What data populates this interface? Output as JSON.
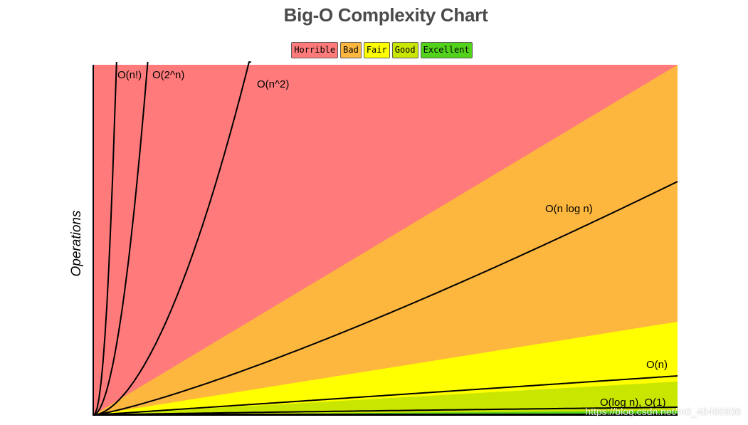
{
  "chart_data": {
    "type": "area",
    "title": "Big-O Complexity Chart",
    "ylabel": "Operations",
    "xlabel": "",
    "legend": {
      "placement": "top-center",
      "items": [
        {
          "label": "Horrible",
          "color": "#ff7b7b"
        },
        {
          "label": "Bad",
          "color": "#fdb73f"
        },
        {
          "label": "Fair",
          "color": "#ffff00"
        },
        {
          "label": "Good",
          "color": "#c9e600"
        },
        {
          "label": "Excellent",
          "color": "#53d21b"
        }
      ]
    },
    "zones": [
      {
        "name": "Horrible",
        "color": "#ff7b7b"
      },
      {
        "name": "Bad",
        "color": "#fdb73f"
      },
      {
        "name": "Fair",
        "color": "#ffff00"
      },
      {
        "name": "Good",
        "color": "#c9e600"
      },
      {
        "name": "Excellent",
        "color": "#53d21b"
      }
    ],
    "series": [
      {
        "name": "O(n!)",
        "fn": "factorial"
      },
      {
        "name": "O(2^n)",
        "fn": "exponential"
      },
      {
        "name": "O(n^2)",
        "fn": "quadratic"
      },
      {
        "name": "O(n log n)",
        "fn": "nlogn"
      },
      {
        "name": "O(n)",
        "fn": "linear"
      },
      {
        "name": "O(log n), O(1)",
        "fn": "constant"
      }
    ],
    "grid": false
  },
  "watermark": "https://blog.csdn.net/m0_48490906"
}
